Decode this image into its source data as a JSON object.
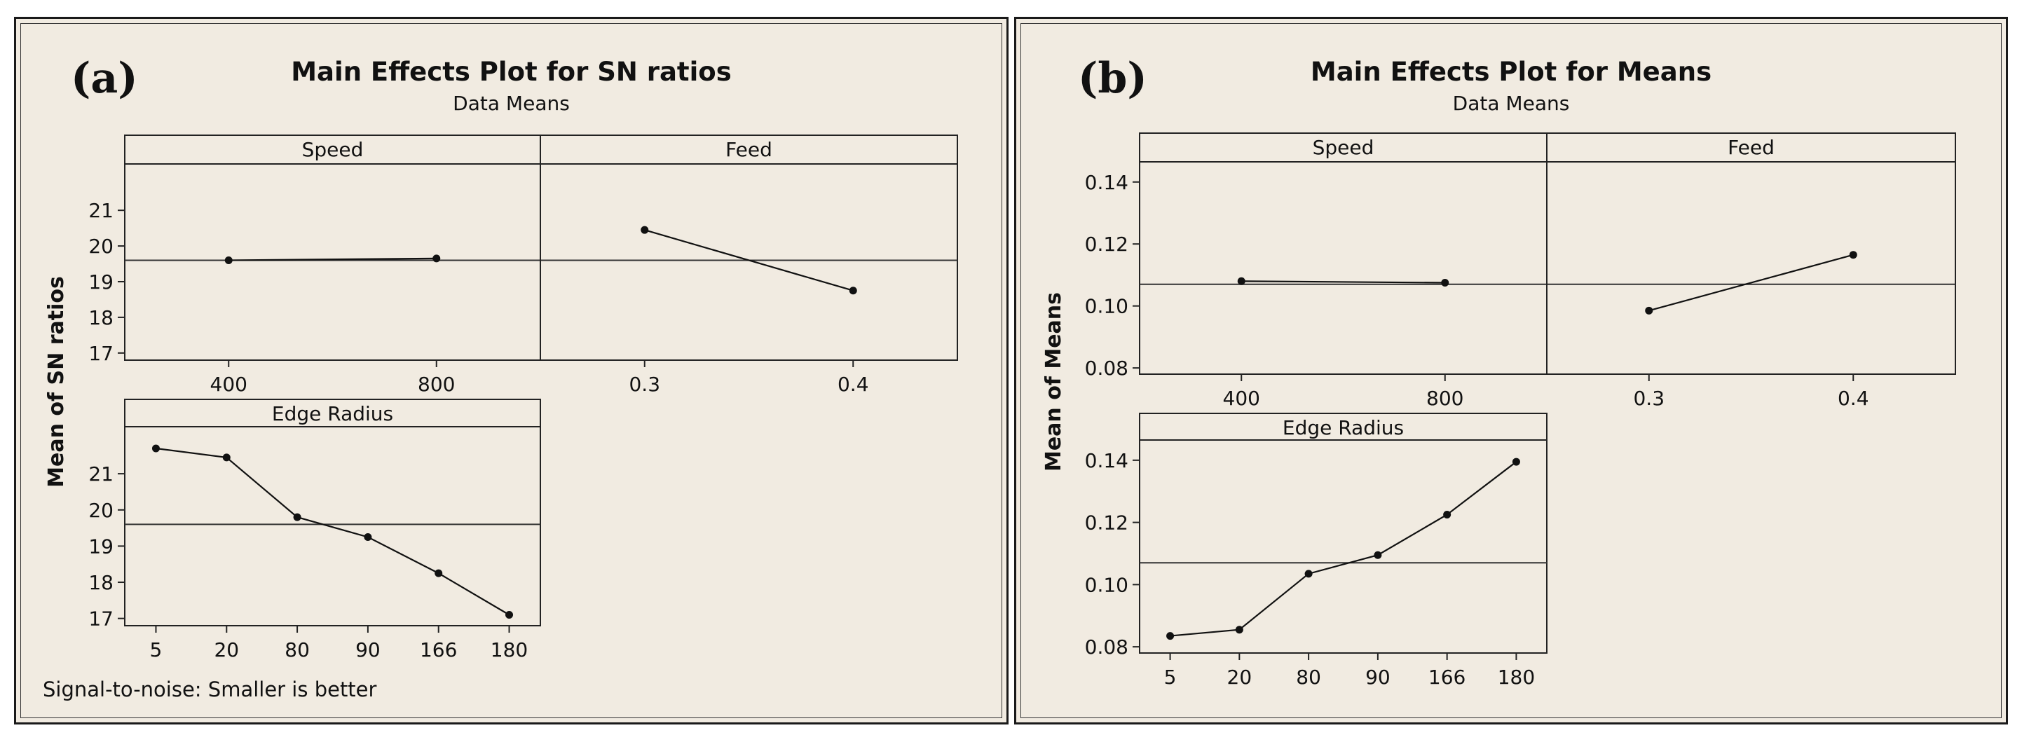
{
  "panels": [
    {
      "label": "(a)",
      "title": "Main Effects Plot for SN ratios",
      "subtitle": "Data Means",
      "ylabel": "Mean of SN ratios",
      "note": "Signal-to-noise: Smaller is better"
    },
    {
      "label": "(b)",
      "title": "Main Effects Plot for Means",
      "subtitle": "Data Means",
      "ylabel": "Mean of Means",
      "note": ""
    }
  ],
  "chart_data": [
    {
      "type": "line",
      "title": "Main Effects Plot for SN ratios",
      "subtitle": "Data Means",
      "ylabel": "Mean of SN ratios",
      "ylim": [
        16.8,
        22.3
      ],
      "yticks": [
        17,
        18,
        19,
        20,
        21
      ],
      "grand_mean": 19.6,
      "factors": [
        {
          "name": "Speed",
          "categories": [
            "400",
            "800"
          ],
          "values": [
            19.6,
            19.65
          ]
        },
        {
          "name": "Feed",
          "categories": [
            "0.3",
            "0.4"
          ],
          "values": [
            20.45,
            18.75
          ]
        },
        {
          "name": "Edge Radius",
          "categories": [
            "5",
            "20",
            "80",
            "90",
            "166",
            "180"
          ],
          "values": [
            21.7,
            21.45,
            19.8,
            19.25,
            18.25,
            17.1
          ]
        }
      ]
    },
    {
      "type": "line",
      "title": "Main Effects Plot for Means",
      "subtitle": "Data Means",
      "ylabel": "Mean of Means",
      "ylim": [
        0.078,
        0.1465
      ],
      "yticks": [
        "0.08",
        "0.10",
        "0.12",
        "0.14"
      ],
      "grand_mean": 0.107,
      "factors": [
        {
          "name": "Speed",
          "categories": [
            "400",
            "800"
          ],
          "values": [
            0.108,
            0.1075
          ]
        },
        {
          "name": "Feed",
          "categories": [
            "0.3",
            "0.4"
          ],
          "values": [
            0.0985,
            0.1165
          ]
        },
        {
          "name": "Edge Radius",
          "categories": [
            "5",
            "20",
            "80",
            "90",
            "166",
            "180"
          ],
          "values": [
            0.0835,
            0.0855,
            0.1035,
            0.1095,
            0.1225,
            0.1395
          ]
        }
      ]
    }
  ]
}
